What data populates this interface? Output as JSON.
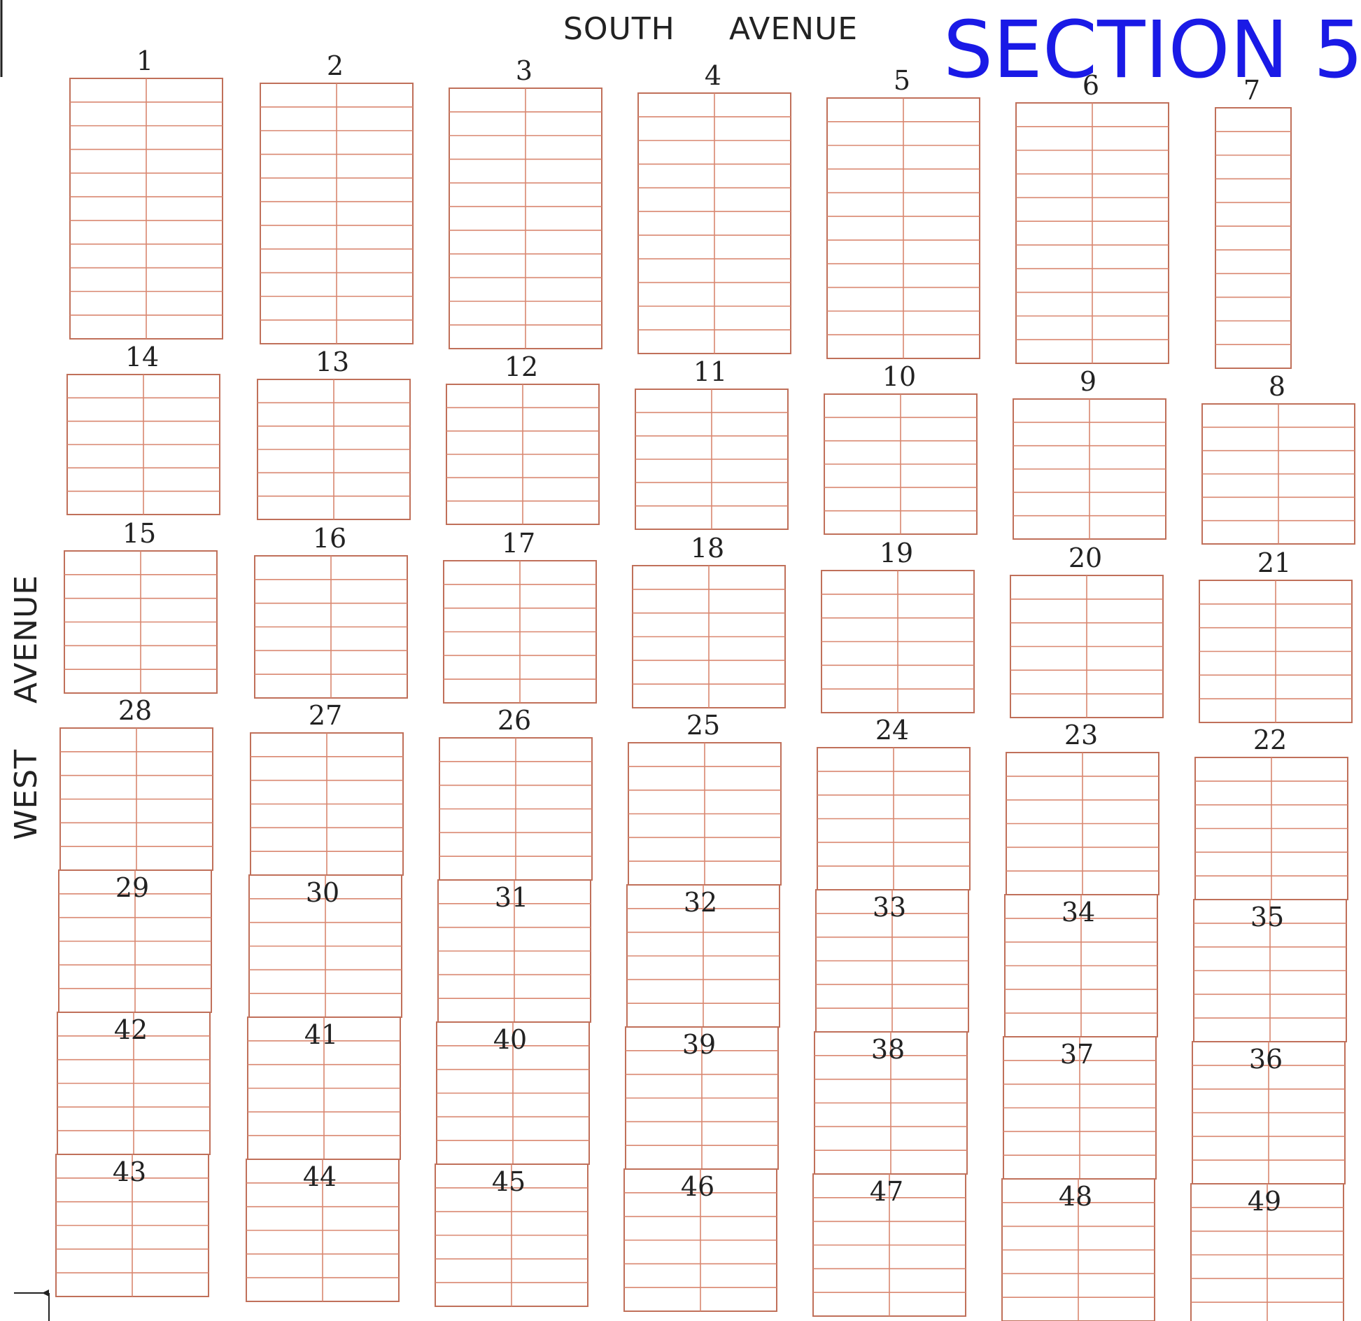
{
  "title": "SECTION 5",
  "streets": {
    "south_1": "SOUTH",
    "south_2": "AVENUE",
    "west_1": "WEST",
    "west_2": "AVENUE"
  },
  "colors": {
    "grid": "#d98770",
    "frame": "#c0705a",
    "title": "#1a1ae6",
    "text": "#222222"
  },
  "rows": [
    {
      "labels": [
        "1",
        "2",
        "3",
        "4",
        "5",
        "6",
        "7"
      ],
      "lots_per_column": 11
    },
    {
      "labels": [
        "14",
        "13",
        "12",
        "11",
        "10",
        "9",
        "8"
      ],
      "lots_per_column": 6
    },
    {
      "labels": [
        "15",
        "16",
        "17",
        "18",
        "19",
        "20",
        "21"
      ],
      "lots_per_column": 6
    }
  ],
  "tall_row": {
    "top_labels": [
      "28",
      "27",
      "26",
      "25",
      "24",
      "23",
      "22"
    ],
    "sections": [
      [
        "29",
        "30",
        "31",
        "32",
        "33",
        "34",
        "35"
      ],
      [
        "42",
        "41",
        "40",
        "39",
        "38",
        "37",
        "36"
      ],
      [
        "43",
        "44",
        "45",
        "46",
        "47",
        "48",
        "49"
      ]
    ],
    "lots_per_section": 6
  }
}
